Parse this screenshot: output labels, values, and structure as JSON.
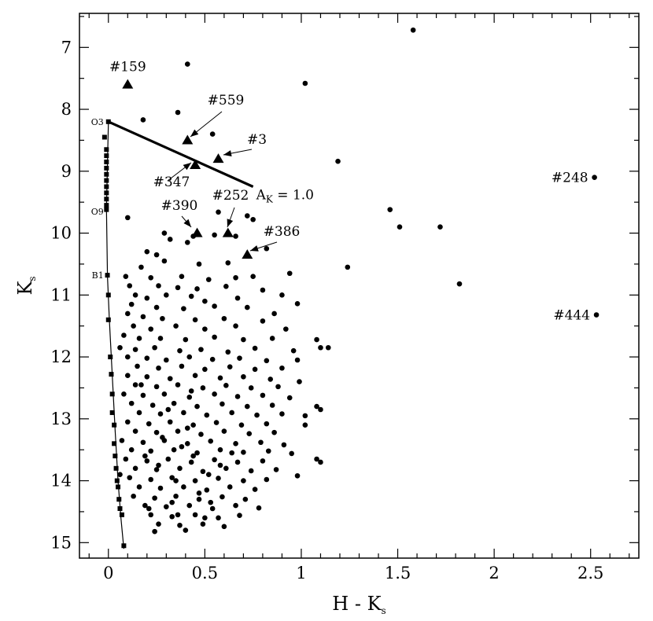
{
  "chart_data": {
    "type": "scatter",
    "title": "",
    "xlabel": "H - K",
    "xlabel_sub": "s",
    "ylabel": "K",
    "ylabel_sub": "s",
    "xlim": [
      -0.15,
      2.75
    ],
    "ylim": [
      15.25,
      6.45
    ],
    "y_inverted": true,
    "grid": false,
    "legend": "none",
    "x_ticks": [
      0,
      0.5,
      1,
      1.5,
      2,
      2.5
    ],
    "x_tick_labels": [
      "0",
      "0.5",
      "1",
      "1.5",
      "2",
      "2.5"
    ],
    "y_ticks": [
      7,
      8,
      9,
      10,
      11,
      12,
      13,
      14,
      15
    ],
    "y_tick_labels": [
      "7",
      "8",
      "9",
      "10",
      "11",
      "12",
      "13",
      "14",
      "15"
    ],
    "reddening_vector": {
      "from": [
        0.0,
        8.2
      ],
      "to": [
        0.75,
        9.25
      ],
      "label": "A",
      "label_sub": "K",
      "label_value": " = 1.0"
    },
    "main_sequence": {
      "line": [
        [
          0.0,
          8.2
        ],
        [
          -0.01,
          9.6
        ],
        [
          -0.005,
          10.7
        ],
        [
          0.005,
          11.4
        ],
        [
          0.02,
          12.3
        ],
        [
          0.035,
          13.2
        ],
        [
          0.05,
          14.0
        ],
        [
          0.065,
          14.6
        ],
        [
          0.08,
          15.1
        ]
      ],
      "markers": [
        [
          0.0,
          8.2
        ],
        [
          -0.02,
          8.45
        ],
        [
          -0.01,
          8.65
        ],
        [
          -0.01,
          8.75
        ],
        [
          -0.01,
          8.85
        ],
        [
          -0.01,
          8.95
        ],
        [
          -0.01,
          9.05
        ],
        [
          -0.01,
          9.15
        ],
        [
          -0.01,
          9.25
        ],
        [
          -0.01,
          9.35
        ],
        [
          -0.01,
          9.45
        ],
        [
          -0.01,
          9.55
        ],
        [
          -0.01,
          9.62
        ],
        [
          -0.005,
          10.68
        ],
        [
          0.0,
          11.0
        ],
        [
          0.0,
          11.4
        ],
        [
          0.01,
          12.0
        ],
        [
          0.015,
          12.28
        ],
        [
          0.02,
          12.6
        ],
        [
          0.02,
          12.9
        ],
        [
          0.03,
          13.1
        ],
        [
          0.03,
          13.4
        ],
        [
          0.035,
          13.6
        ],
        [
          0.04,
          13.8
        ],
        [
          0.045,
          14.0
        ],
        [
          0.05,
          14.1
        ],
        [
          0.055,
          14.3
        ],
        [
          0.06,
          14.45
        ],
        [
          0.07,
          14.55
        ],
        [
          0.08,
          15.05
        ]
      ],
      "spectral_labels": [
        {
          "text": "O3",
          "y": 8.2
        },
        {
          "text": "O9",
          "y": 9.65
        },
        {
          "text": "B1",
          "y": 10.68
        }
      ]
    },
    "labeled_triangles": [
      {
        "label": "#159",
        "x": 0.1,
        "y": 7.6
      },
      {
        "label": "#559",
        "x": 0.41,
        "y": 8.5
      },
      {
        "label": "#3",
        "x": 0.57,
        "y": 8.8
      },
      {
        "label": "#347",
        "x": 0.45,
        "y": 8.9
      },
      {
        "label": "#390",
        "x": 0.46,
        "y": 10.0
      },
      {
        "label": "#252",
        "x": 0.62,
        "y": 10.0
      },
      {
        "label": "#386",
        "x": 0.72,
        "y": 10.35
      }
    ],
    "labeled_points": [
      {
        "label": "#248",
        "x": 2.52,
        "y": 9.1
      },
      {
        "label": "#444",
        "x": 2.53,
        "y": 11.32
      }
    ],
    "points": [
      [
        1.58,
        6.72
      ],
      [
        0.41,
        7.27
      ],
      [
        1.02,
        7.58
      ],
      [
        0.36,
        8.05
      ],
      [
        0.18,
        8.17
      ],
      [
        0.54,
        8.4
      ],
      [
        1.19,
        8.84
      ],
      [
        1.46,
        9.62
      ],
      [
        0.57,
        9.66
      ],
      [
        0.72,
        9.72
      ],
      [
        0.1,
        9.75
      ],
      [
        0.75,
        9.78
      ],
      [
        1.51,
        9.9
      ],
      [
        1.72,
        9.9
      ],
      [
        0.29,
        10.0
      ],
      [
        0.44,
        10.05
      ],
      [
        0.66,
        10.05
      ],
      [
        0.32,
        10.1
      ],
      [
        0.41,
        10.15
      ],
      [
        0.55,
        10.03
      ],
      [
        0.82,
        10.25
      ],
      [
        0.2,
        10.3
      ],
      [
        0.25,
        10.35
      ],
      [
        0.29,
        10.45
      ],
      [
        0.17,
        10.55
      ],
      [
        0.47,
        10.5
      ],
      [
        0.62,
        10.48
      ],
      [
        1.24,
        10.55
      ],
      [
        0.94,
        10.65
      ],
      [
        0.09,
        10.7
      ],
      [
        0.22,
        10.72
      ],
      [
        0.38,
        10.7
      ],
      [
        0.52,
        10.75
      ],
      [
        0.66,
        10.72
      ],
      [
        0.75,
        10.7
      ],
      [
        1.82,
        10.82
      ],
      [
        0.11,
        10.85
      ],
      [
        0.26,
        10.85
      ],
      [
        0.36,
        10.88
      ],
      [
        0.46,
        10.9
      ],
      [
        0.61,
        10.86
      ],
      [
        0.8,
        10.92
      ],
      [
        0.14,
        11.0
      ],
      [
        0.2,
        11.05
      ],
      [
        0.3,
        11.0
      ],
      [
        0.43,
        11.02
      ],
      [
        0.5,
        11.1
      ],
      [
        0.67,
        11.05
      ],
      [
        0.9,
        11.0
      ],
      [
        0.12,
        11.15
      ],
      [
        0.25,
        11.2
      ],
      [
        0.39,
        11.22
      ],
      [
        0.55,
        11.18
      ],
      [
        0.72,
        11.2
      ],
      [
        0.86,
        11.3
      ],
      [
        0.98,
        11.14
      ],
      [
        0.1,
        11.3
      ],
      [
        0.18,
        11.35
      ],
      [
        0.28,
        11.38
      ],
      [
        0.45,
        11.4
      ],
      [
        0.6,
        11.38
      ],
      [
        0.8,
        11.42
      ],
      [
        0.13,
        11.5
      ],
      [
        0.22,
        11.55
      ],
      [
        0.35,
        11.5
      ],
      [
        0.5,
        11.55
      ],
      [
        0.66,
        11.5
      ],
      [
        0.92,
        11.55
      ],
      [
        0.08,
        11.65
      ],
      [
        0.16,
        11.7
      ],
      [
        0.27,
        11.7
      ],
      [
        0.4,
        11.72
      ],
      [
        0.55,
        11.68
      ],
      [
        0.7,
        11.72
      ],
      [
        0.85,
        11.7
      ],
      [
        1.08,
        11.72
      ],
      [
        1.14,
        11.85
      ],
      [
        0.06,
        11.85
      ],
      [
        0.14,
        11.88
      ],
      [
        0.24,
        11.85
      ],
      [
        0.37,
        11.9
      ],
      [
        0.48,
        11.88
      ],
      [
        0.62,
        11.92
      ],
      [
        0.76,
        11.86
      ],
      [
        0.96,
        11.9
      ],
      [
        1.1,
        11.85
      ],
      [
        0.1,
        12.0
      ],
      [
        0.2,
        12.02
      ],
      [
        0.3,
        12.05
      ],
      [
        0.42,
        12.0
      ],
      [
        0.54,
        12.04
      ],
      [
        0.68,
        12.02
      ],
      [
        0.82,
        12.06
      ],
      [
        0.98,
        12.05
      ],
      [
        0.15,
        12.15
      ],
      [
        0.26,
        12.18
      ],
      [
        0.38,
        12.15
      ],
      [
        0.5,
        12.2
      ],
      [
        0.63,
        12.16
      ],
      [
        0.76,
        12.2
      ],
      [
        0.9,
        12.18
      ],
      [
        0.1,
        12.3
      ],
      [
        0.2,
        12.32
      ],
      [
        0.32,
        12.35
      ],
      [
        0.45,
        12.3
      ],
      [
        0.58,
        12.34
      ],
      [
        0.7,
        12.32
      ],
      [
        0.84,
        12.36
      ],
      [
        0.99,
        12.4
      ],
      [
        0.14,
        12.45
      ],
      [
        0.25,
        12.48
      ],
      [
        0.36,
        12.45
      ],
      [
        0.49,
        12.5
      ],
      [
        0.61,
        12.46
      ],
      [
        0.74,
        12.5
      ],
      [
        0.88,
        12.48
      ],
      [
        0.08,
        12.6
      ],
      [
        0.18,
        12.62
      ],
      [
        0.29,
        12.6
      ],
      [
        0.42,
        12.65
      ],
      [
        0.55,
        12.6
      ],
      [
        0.67,
        12.64
      ],
      [
        0.8,
        12.62
      ],
      [
        0.94,
        12.66
      ],
      [
        1.08,
        12.8
      ],
      [
        0.12,
        12.75
      ],
      [
        0.23,
        12.78
      ],
      [
        0.34,
        12.75
      ],
      [
        0.46,
        12.8
      ],
      [
        0.59,
        12.76
      ],
      [
        0.72,
        12.8
      ],
      [
        0.85,
        12.78
      ],
      [
        1.1,
        12.85
      ],
      [
        0.16,
        12.9
      ],
      [
        0.27,
        12.92
      ],
      [
        0.39,
        12.9
      ],
      [
        0.51,
        12.94
      ],
      [
        0.64,
        12.9
      ],
      [
        0.77,
        12.94
      ],
      [
        0.9,
        12.92
      ],
      [
        1.02,
        12.95
      ],
      [
        0.1,
        13.05
      ],
      [
        0.21,
        13.08
      ],
      [
        0.32,
        13.05
      ],
      [
        0.44,
        13.1
      ],
      [
        0.56,
        13.06
      ],
      [
        0.69,
        13.1
      ],
      [
        0.82,
        13.08
      ],
      [
        1.02,
        13.1
      ],
      [
        0.14,
        13.2
      ],
      [
        0.25,
        13.22
      ],
      [
        0.36,
        13.2
      ],
      [
        0.48,
        13.25
      ],
      [
        0.6,
        13.2
      ],
      [
        0.73,
        13.24
      ],
      [
        0.86,
        13.22
      ],
      [
        0.07,
        13.35
      ],
      [
        0.18,
        13.38
      ],
      [
        0.29,
        13.35
      ],
      [
        0.41,
        13.4
      ],
      [
        0.53,
        13.36
      ],
      [
        0.66,
        13.4
      ],
      [
        0.79,
        13.38
      ],
      [
        0.91,
        13.42
      ],
      [
        0.12,
        13.5
      ],
      [
        0.22,
        13.52
      ],
      [
        0.34,
        13.5
      ],
      [
        0.46,
        13.55
      ],
      [
        0.58,
        13.5
      ],
      [
        0.7,
        13.54
      ],
      [
        0.83,
        13.52
      ],
      [
        0.95,
        13.56
      ],
      [
        0.09,
        13.65
      ],
      [
        0.2,
        13.68
      ],
      [
        0.31,
        13.65
      ],
      [
        0.43,
        13.7
      ],
      [
        0.55,
        13.66
      ],
      [
        0.67,
        13.7
      ],
      [
        0.8,
        13.68
      ],
      [
        1.08,
        13.65
      ],
      [
        1.1,
        13.7
      ],
      [
        0.14,
        13.8
      ],
      [
        0.25,
        13.82
      ],
      [
        0.37,
        13.8
      ],
      [
        0.49,
        13.85
      ],
      [
        0.61,
        13.8
      ],
      [
        0.74,
        13.84
      ],
      [
        0.87,
        13.82
      ],
      [
        0.11,
        13.95
      ],
      [
        0.22,
        13.98
      ],
      [
        0.33,
        13.95
      ],
      [
        0.45,
        14.0
      ],
      [
        0.57,
        13.96
      ],
      [
        0.7,
        14.0
      ],
      [
        0.82,
        13.98
      ],
      [
        0.98,
        13.92
      ],
      [
        0.16,
        14.1
      ],
      [
        0.27,
        14.12
      ],
      [
        0.39,
        14.1
      ],
      [
        0.51,
        14.15
      ],
      [
        0.63,
        14.1
      ],
      [
        0.76,
        14.14
      ],
      [
        0.13,
        14.25
      ],
      [
        0.24,
        14.28
      ],
      [
        0.35,
        14.25
      ],
      [
        0.47,
        14.3
      ],
      [
        0.59,
        14.26
      ],
      [
        0.71,
        14.3
      ],
      [
        0.19,
        14.4
      ],
      [
        0.3,
        14.42
      ],
      [
        0.42,
        14.4
      ],
      [
        0.54,
        14.45
      ],
      [
        0.66,
        14.4
      ],
      [
        0.78,
        14.44
      ],
      [
        0.22,
        14.55
      ],
      [
        0.33,
        14.58
      ],
      [
        0.45,
        14.55
      ],
      [
        0.57,
        14.6
      ],
      [
        0.68,
        14.56
      ],
      [
        0.26,
        14.7
      ],
      [
        0.37,
        14.72
      ],
      [
        0.49,
        14.7
      ],
      [
        0.6,
        14.74
      ],
      [
        0.24,
        14.82
      ],
      [
        0.4,
        14.8
      ],
      [
        0.06,
        13.9
      ],
      [
        0.19,
        13.6
      ],
      [
        0.28,
        13.3
      ],
      [
        0.35,
        14.0
      ],
      [
        0.44,
        13.6
      ],
      [
        0.52,
        13.9
      ],
      [
        0.38,
        13.45
      ],
      [
        0.47,
        14.2
      ],
      [
        0.26,
        13.75
      ],
      [
        0.33,
        14.35
      ],
      [
        0.41,
        13.15
      ],
      [
        0.58,
        13.75
      ],
      [
        0.64,
        13.55
      ],
      [
        0.53,
        14.35
      ],
      [
        0.31,
        12.85
      ],
      [
        0.17,
        12.45
      ],
      [
        0.43,
        12.55
      ],
      [
        0.36,
        14.55
      ],
      [
        0.5,
        14.6
      ],
      [
        0.21,
        14.45
      ]
    ]
  }
}
